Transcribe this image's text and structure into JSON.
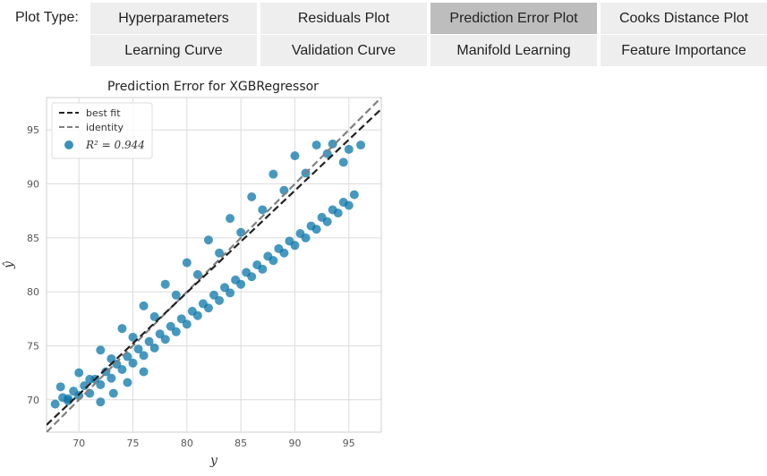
{
  "controls": {
    "label": "Plot Type:",
    "options": [
      {
        "label": "Hyperparameters",
        "active": false
      },
      {
        "label": "Residuals Plot",
        "active": false
      },
      {
        "label": "Prediction Error Plot",
        "active": true
      },
      {
        "label": "Cooks Distance Plot",
        "active": false
      },
      {
        "label": "Learning Curve",
        "active": false
      },
      {
        "label": "Validation Curve",
        "active": false
      },
      {
        "label": "Manifold Learning",
        "active": false
      },
      {
        "label": "Feature Importance",
        "active": false
      }
    ],
    "active_color": "#bdbdbd",
    "inactive_color": "#eeeeee"
  },
  "chart_data": {
    "type": "scatter",
    "title": "Prediction Error for XGBRegressor",
    "xlabel": "y",
    "ylabel": "ŷ",
    "xlim": [
      67,
      98
    ],
    "ylim": [
      67,
      98
    ],
    "xticks": [
      70,
      75,
      80,
      85,
      90,
      95
    ],
    "yticks": [
      70,
      75,
      80,
      85,
      90,
      95
    ],
    "grid": true,
    "legend": {
      "placement": "top-left",
      "entries": [
        "best fit",
        "identity"
      ],
      "r2_label": "R² = 0.944"
    },
    "r2": 0.944,
    "scatter_color": "#0a76a8",
    "best_fit": {
      "slope": 0.944,
      "intercept": 4.42,
      "color": "#222222"
    },
    "identity": {
      "slope": 1.0,
      "intercept": 0.0,
      "color": "#808080"
    },
    "series": [
      {
        "name": "",
        "points": [
          [
            67.8,
            69.6
          ],
          [
            68.5,
            70.2
          ],
          [
            69.0,
            69.9
          ],
          [
            69.5,
            70.8
          ],
          [
            70.0,
            70.4
          ],
          [
            70.5,
            71.3
          ],
          [
            71.0,
            70.6
          ],
          [
            71.5,
            71.9
          ],
          [
            72.0,
            71.4
          ],
          [
            72.5,
            72.6
          ],
          [
            73.0,
            72.0
          ],
          [
            73.5,
            73.3
          ],
          [
            74.0,
            72.8
          ],
          [
            74.5,
            74.0
          ],
          [
            75.0,
            73.4
          ],
          [
            75.5,
            74.7
          ],
          [
            76.0,
            74.1
          ],
          [
            76.5,
            75.4
          ],
          [
            77.0,
            74.8
          ],
          [
            77.5,
            76.1
          ],
          [
            78.0,
            75.6
          ],
          [
            78.5,
            76.8
          ],
          [
            79.0,
            76.3
          ],
          [
            79.5,
            77.5
          ],
          [
            80.0,
            77.0
          ],
          [
            80.5,
            78.2
          ],
          [
            81.0,
            77.8
          ],
          [
            81.5,
            78.9
          ],
          [
            82.0,
            78.5
          ],
          [
            82.5,
            79.7
          ],
          [
            83.0,
            79.2
          ],
          [
            83.5,
            80.4
          ],
          [
            84.0,
            79.9
          ],
          [
            84.5,
            81.1
          ],
          [
            85.0,
            80.7
          ],
          [
            85.5,
            81.8
          ],
          [
            86.0,
            81.4
          ],
          [
            86.5,
            82.5
          ],
          [
            87.0,
            82.1
          ],
          [
            87.5,
            83.3
          ],
          [
            88.0,
            82.9
          ],
          [
            88.5,
            84.0
          ],
          [
            89.0,
            83.6
          ],
          [
            89.5,
            84.7
          ],
          [
            90.0,
            84.3
          ],
          [
            90.5,
            85.4
          ],
          [
            91.0,
            85.0
          ],
          [
            91.5,
            86.1
          ],
          [
            92.0,
            85.8
          ],
          [
            92.5,
            86.9
          ],
          [
            93.0,
            86.5
          ],
          [
            93.5,
            87.6
          ],
          [
            94.0,
            87.3
          ],
          [
            94.5,
            88.3
          ],
          [
            95.0,
            88.0
          ],
          [
            95.5,
            89.0
          ],
          [
            70.0,
            72.5
          ],
          [
            72.0,
            74.6
          ],
          [
            74.0,
            76.6
          ],
          [
            76.0,
            78.7
          ],
          [
            78.0,
            80.7
          ],
          [
            80.0,
            82.7
          ],
          [
            82.0,
            84.8
          ],
          [
            84.0,
            86.8
          ],
          [
            86.0,
            88.8
          ],
          [
            88.0,
            90.9
          ],
          [
            90.0,
            92.6
          ],
          [
            92.0,
            93.6
          ],
          [
            93.5,
            93.7
          ],
          [
            95.0,
            93.2
          ],
          [
            96.1,
            93.6
          ],
          [
            93.0,
            92.8
          ],
          [
            94.5,
            92.0
          ],
          [
            91.0,
            91.0
          ],
          [
            89.0,
            89.4
          ],
          [
            87.0,
            87.6
          ],
          [
            85.0,
            85.5
          ],
          [
            83.0,
            83.6
          ],
          [
            81.0,
            81.6
          ],
          [
            79.0,
            79.7
          ],
          [
            77.0,
            77.7
          ],
          [
            75.0,
            75.8
          ],
          [
            73.0,
            73.8
          ],
          [
            71.0,
            71.9
          ],
          [
            69.0,
            70.1
          ],
          [
            72.0,
            69.8
          ],
          [
            73.2,
            70.6
          ],
          [
            74.5,
            71.6
          ],
          [
            76.0,
            72.6
          ],
          [
            68.3,
            71.2
          ]
        ]
      }
    ]
  }
}
